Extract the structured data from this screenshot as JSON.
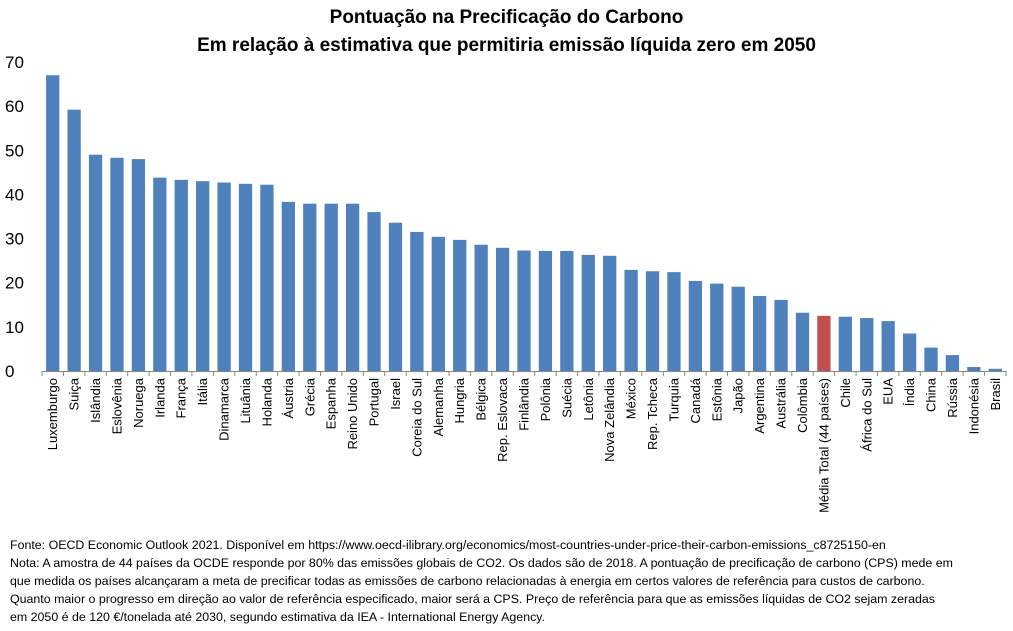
{
  "title": "Pontuação na Precificação do Carbono",
  "subtitle": "Em relação à estimativa que permitiria emissão líquida zero em 2050",
  "chart_data": {
    "type": "bar",
    "title": "Pontuação na Precificação do Carbono",
    "subtitle": "Em relação à estimativa que permitiria emissão líquida zero em 2050",
    "xlabel": "",
    "ylabel": "",
    "ylim": [
      0,
      70
    ],
    "yticks": [
      "0",
      "10",
      "20",
      "30",
      "40",
      "50",
      "60",
      "70"
    ],
    "grid": false,
    "legend": "none",
    "bar_color": "#4F81BD",
    "highlight_color": "#C0504D",
    "highlight_category": "Média Total (44 países)",
    "categories": [
      "Luxemburgo",
      "Suiça",
      "Islândia",
      "Eslovênia",
      "Noruega",
      "Irlanda",
      "França",
      "Itália",
      "Dinamarca",
      "Lituânia",
      "Holanda",
      "Áustria",
      "Grécia",
      "Espanha",
      "Reino Unido",
      "Portugal",
      "Israel",
      "Coreia do Sul",
      "Alemanha",
      "Hungria",
      "Bélgica",
      "Rep. Eslovaca",
      "Finlândia",
      "Polônia",
      "Suécia",
      "Letônia",
      "Nova Zelândia",
      "México",
      "Rep. Tcheca",
      "Turquia",
      "Canadá",
      "Estônia",
      "Japão",
      "Argentina",
      "Austrália",
      "Colômbia",
      "Média Total (44 países)",
      "Chile",
      "África do Sul",
      "EUA",
      "Índia",
      "China",
      "Rússia",
      "Indonésia",
      "Brasil"
    ],
    "values": [
      67,
      59.2,
      49,
      48.3,
      48,
      43.8,
      43.3,
      43,
      42.7,
      42.4,
      42.2,
      38.3,
      37.9,
      37.9,
      37.9,
      36,
      33.6,
      31.5,
      30.4,
      29.7,
      28.6,
      27.9,
      27.3,
      27.2,
      27.2,
      26.3,
      26.1,
      22.9,
      22.6,
      22.4,
      20.4,
      19.8,
      19.1,
      17,
      16.1,
      13.2,
      12.5,
      12.3,
      12,
      11.3,
      8.5,
      5.3,
      3.6,
      0.9,
      0.5
    ]
  },
  "notes": [
    "Fonte: OECD Economic Outlook 2021.  Disponível em https://www.oecd-ilibrary.org/economics/most-countries-under-price-their-carbon-emissions_c8725150-en",
    "Nota: A amostra de 44 países da OCDE responde por 80% das emissões globais de CO2. Os dados são de 2018.  A pontuação de precificação de carbono (CPS) mede em",
    "que medida os países alcançaram a meta de precificar todas as emissões de carbono relacionadas à energia em certos valores de referência para custos de carbono.",
    "Quanto maior o progresso em direção ao valor de referência especificado, maior será a CPS. Preço de referência para que as emissões líquidas de CO2 sejam zeradas",
    "em 2050  é de 120  €/tonelada até 2030, segundo estimativa da IEA - International Energy Agency."
  ]
}
